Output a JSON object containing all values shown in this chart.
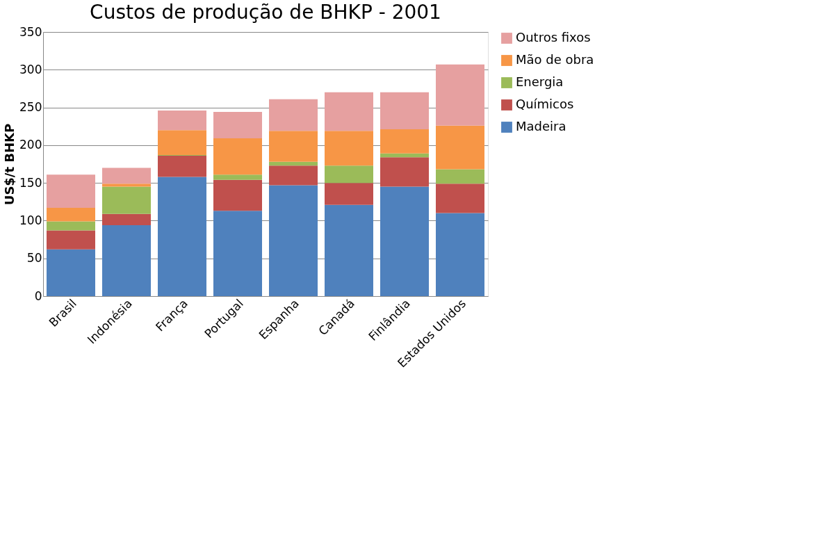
{
  "chart_data": {
    "type": "bar",
    "title": "Custos de produção  de BHKP - 2001",
    "ylabel": "US$/t BHKP",
    "categories": [
      "Brasil",
      "Indonésia",
      "França",
      "Portugal",
      "Espanha",
      "Canadá",
      "Finlândia",
      "Estados Unidos"
    ],
    "stacked": true,
    "series": [
      {
        "name": "Madeira",
        "color": "#4f81bd",
        "values": [
          62,
          94,
          158,
          113,
          147,
          121,
          145,
          110
        ]
      },
      {
        "name": "Químicos",
        "color": "#c0504d",
        "values": [
          25,
          15,
          28,
          41,
          26,
          29,
          39,
          39
        ]
      },
      {
        "name": "Energia",
        "color": "#9bbb59",
        "values": [
          12,
          36,
          1,
          7,
          5,
          23,
          5,
          19
        ]
      },
      {
        "name": "Mão de obra",
        "color": "#f79646",
        "values": [
          18,
          4,
          33,
          48,
          41,
          46,
          32,
          58
        ]
      },
      {
        "name": "Outros fixos",
        "color": "#e6a0a0",
        "values": [
          44,
          21,
          26,
          35,
          42,
          51,
          49,
          81
        ]
      }
    ],
    "ylim": [
      0,
      350
    ],
    "yticks": [
      0,
      50,
      100,
      150,
      200,
      250,
      300,
      350
    ],
    "grid": "y",
    "legend": "right"
  }
}
